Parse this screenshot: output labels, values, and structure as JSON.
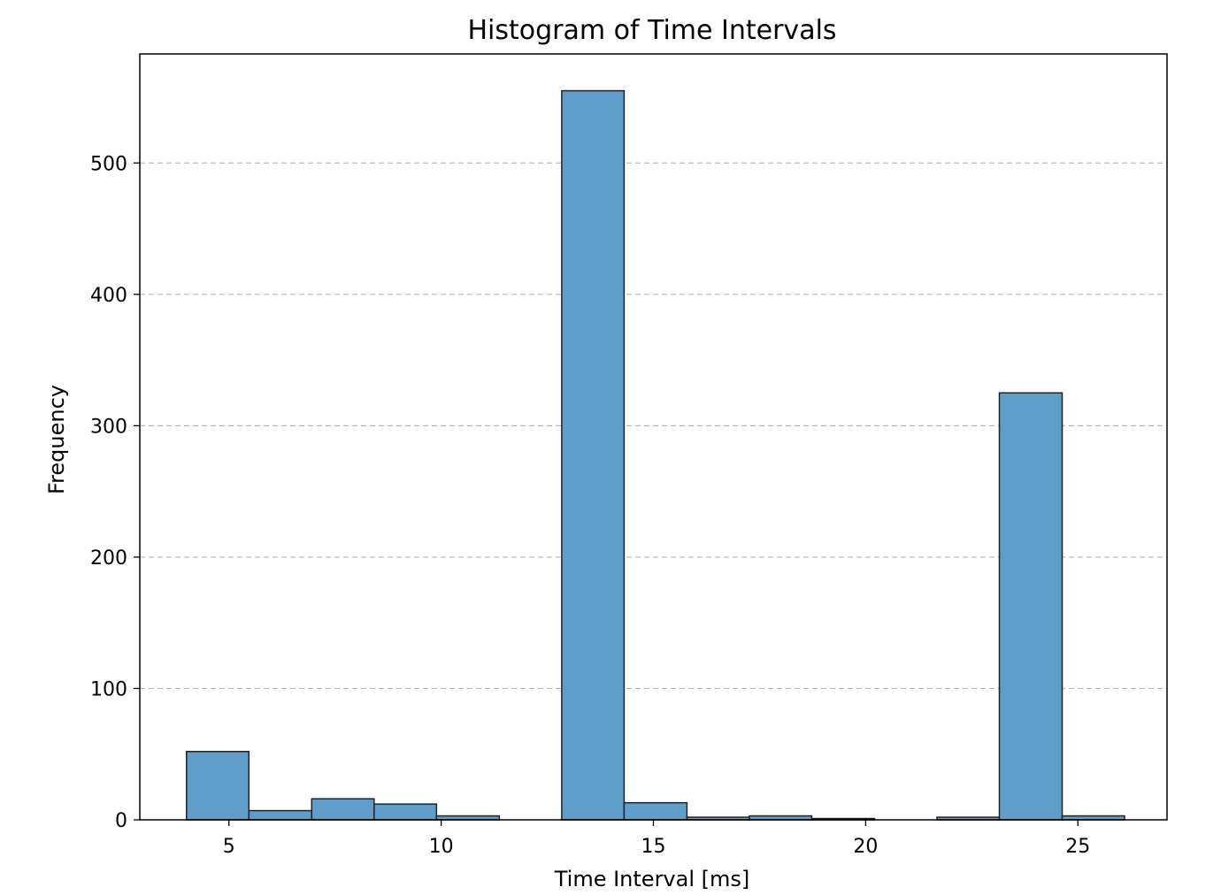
{
  "chart_data": {
    "type": "bar",
    "title": "Histogram of Time Intervals",
    "xlabel": "Time Interval [ms]",
    "ylabel": "Frequency",
    "xlim": [
      2.9,
      27.1
    ],
    "ylim": [
      0,
      583
    ],
    "xticks": [
      5,
      10,
      15,
      20,
      25
    ],
    "yticks": [
      0,
      100,
      200,
      300,
      400,
      500
    ],
    "grid": "y-dashed",
    "legend": "none",
    "bar_color": "#5f9ecb",
    "edge_color": "#222222",
    "bins": [
      {
        "x0": 4.0,
        "x1": 5.47,
        "value": 52
      },
      {
        "x0": 5.47,
        "x1": 6.95,
        "value": 7
      },
      {
        "x0": 6.95,
        "x1": 8.42,
        "value": 16
      },
      {
        "x0": 8.42,
        "x1": 9.89,
        "value": 12
      },
      {
        "x0": 9.89,
        "x1": 11.37,
        "value": 3
      },
      {
        "x0": 11.37,
        "x1": 12.84,
        "value": 0
      },
      {
        "x0": 12.84,
        "x1": 14.31,
        "value": 555
      },
      {
        "x0": 14.31,
        "x1": 15.79,
        "value": 13
      },
      {
        "x0": 15.79,
        "x1": 17.26,
        "value": 2
      },
      {
        "x0": 17.26,
        "x1": 18.73,
        "value": 3
      },
      {
        "x0": 18.73,
        "x1": 20.21,
        "value": 1
      },
      {
        "x0": 20.21,
        "x1": 21.68,
        "value": 0
      },
      {
        "x0": 21.68,
        "x1": 23.15,
        "value": 2
      },
      {
        "x0": 23.15,
        "x1": 24.63,
        "value": 325
      },
      {
        "x0": 24.63,
        "x1": 26.1,
        "value": 3
      }
    ]
  }
}
